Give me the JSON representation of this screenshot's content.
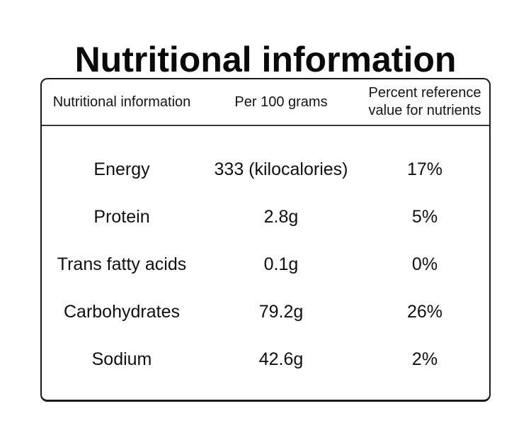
{
  "page": {
    "background_color": "#ffffff",
    "text_color": "#111111",
    "border_color": "#1a1a1a"
  },
  "title": "Nutritional information",
  "table": {
    "headers": {
      "nutrient": "Nutritional information",
      "per_100g": "Per 100 grams",
      "percent_reference": "Percent reference value for nutrients"
    },
    "rows": [
      {
        "nutrient": "Energy",
        "per_100g": "333 (kilocalories)",
        "percent_reference": "17%"
      },
      {
        "nutrient": "Protein",
        "per_100g": "2.8g",
        "percent_reference": "5%"
      },
      {
        "nutrient": "Trans fatty acids",
        "per_100g": "0.1g",
        "percent_reference": "0%"
      },
      {
        "nutrient": "Carbohydrates",
        "per_100g": "79.2g",
        "percent_reference": "26%"
      },
      {
        "nutrient": "Sodium",
        "per_100g": "42.6g",
        "percent_reference": "2%"
      }
    ]
  },
  "chart_data": {
    "type": "table",
    "title": "Nutritional information",
    "columns": [
      "Nutritional information",
      "Per 100 grams",
      "Percent reference value for nutrients"
    ],
    "rows": [
      [
        "Energy",
        "333 (kilocalories)",
        "17%"
      ],
      [
        "Protein",
        "2.8g",
        "5%"
      ],
      [
        "Trans fatty acids",
        "0.1g",
        "0%"
      ],
      [
        "Carbohydrates",
        "79.2g",
        "26%"
      ],
      [
        "Sodium",
        "42.6g",
        "2%"
      ]
    ]
  }
}
